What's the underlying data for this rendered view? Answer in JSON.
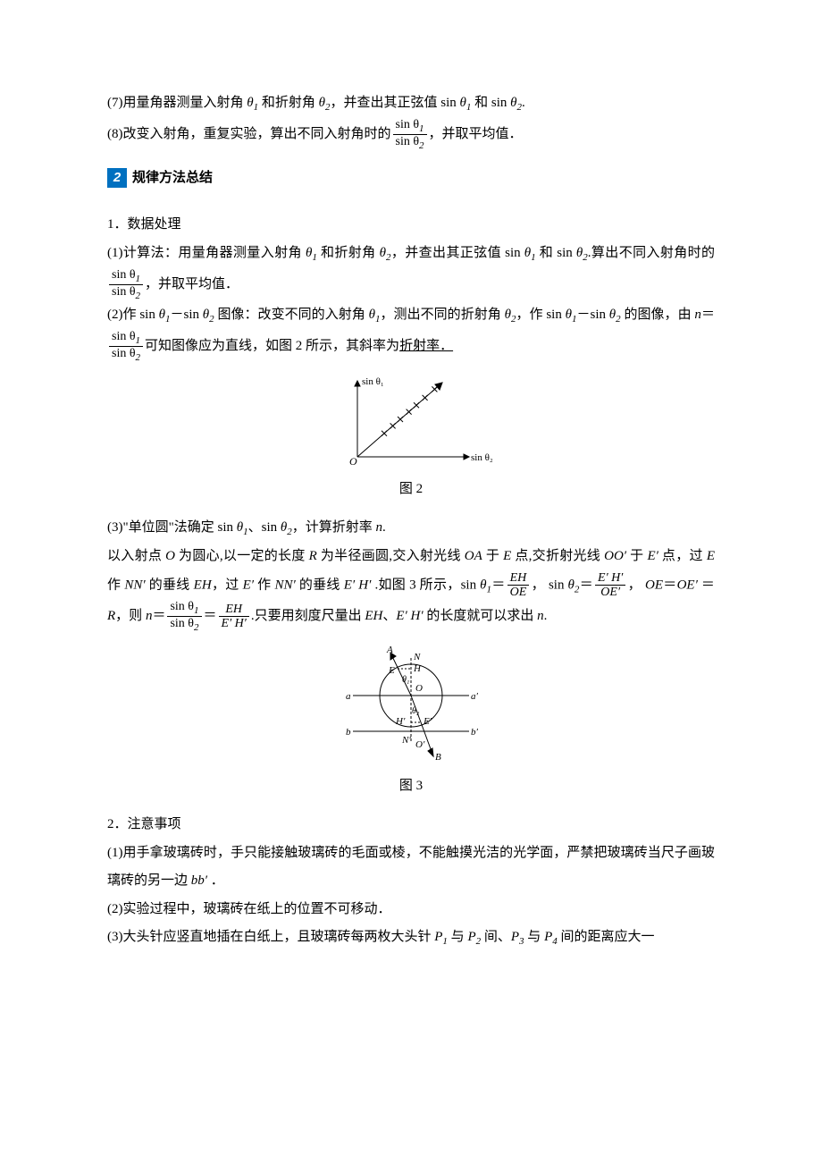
{
  "p7": {
    "prefix": "(7)用量角器测量入射角 ",
    "t1a": "θ",
    "t1s": "1",
    "mid1": " 和折射角 ",
    "t2a": "θ",
    "t2s": "2",
    "mid2": "，并查出其正弦值 sin ",
    "t3a": "θ",
    "t3s": "1",
    "mid3": " 和 sin ",
    "t4a": "θ",
    "t4s": "2",
    "suffix": "."
  },
  "p8": {
    "prefix": "(8)改变入射角，重复实验，算出不同入射角时的",
    "num": "sin θ",
    "num_s": "1",
    "den": "sin θ",
    "den_s": "2",
    "suffix": "，并取平均值．"
  },
  "marker": {
    "num": "2",
    "title": "规律方法总结"
  },
  "h1": "1．数据处理",
  "d1": {
    "prefix": "(1)计算法：用量角器测量入射角 ",
    "t1": "θ",
    "s1": "1",
    "m1": " 和折射角 ",
    "t2": "θ",
    "s2": "2",
    "m2": "，并查出其正弦值 sin ",
    "t3": "θ",
    "s3": "1",
    "m3": " 和 sin ",
    "t4": "θ",
    "s4": "2",
    "m4": ".算出不同入射角时的",
    "num": "sin θ",
    "num_s": "1",
    "den": "sin θ",
    "den_s": "2",
    "suffix": "，并取平均值．"
  },
  "d2": {
    "prefix": "(2)作 sin ",
    "t1": "θ",
    "s1": "1",
    "dash": "－sin ",
    "t2": "θ",
    "s2": "2",
    "m1": " 图像：改变不同的入射角 ",
    "t3": "θ",
    "s3": "1",
    "m2": "，测出不同的折射角 ",
    "t4": "θ",
    "s4": "2",
    "m3": "，作 sin ",
    "t5": "θ",
    "s5": "1",
    "dash2": "－sin ",
    "t6": "θ",
    "s6": "2",
    "m4": " 的图像，由 ",
    "n": "n",
    "eq": "＝",
    "num": "sin θ",
    "num_s": "1",
    "den": "sin θ",
    "den_s": "2",
    "m5": "可知图像应为直线，如图 2 所示，其斜率为",
    "ul": "折射率．"
  },
  "fig2": {
    "caption": "图 2",
    "ylabel": "sin θ₁",
    "xlabel": "sin θ₂",
    "origin": "O",
    "axis_color": "#000",
    "point_color": "#000",
    "points": [
      [
        25,
        25
      ],
      [
        33,
        33
      ],
      [
        40,
        40
      ],
      [
        48,
        48
      ],
      [
        55,
        55
      ],
      [
        63,
        63
      ],
      [
        72,
        72
      ]
    ]
  },
  "d3": {
    "prefix": "(3)\"单位圆\"法确定 sin ",
    "t1": "θ",
    "s1": "1",
    "sep": "、sin ",
    "t2": "θ",
    "s2": "2",
    "m1": "，计算折射率 ",
    "n": "n",
    "suffix": "."
  },
  "d3b": {
    "l1_a": "以入射点 ",
    "O": "O",
    "l1_b": " 为圆心,以一定的长度 ",
    "R": "R",
    "l1_c": " 为半径画圆,交入射光线 ",
    "OA": "OA",
    "l1_d": " 于 ",
    "E": "E",
    "l1_e": " 点,交折射光线 ",
    "OO": "OO′",
    "l2_a": "于 ",
    "Ep": "E′ ",
    "l2_b": " 点，过 ",
    "E2": "E",
    "l2_c": " 作 ",
    "NN": "NN′ ",
    "l2_d": " 的垂线 ",
    "EH": "EH",
    "l2_e": "，过 ",
    "Ep2": "E′ ",
    "l2_f": " 作 ",
    "NN2": "NN′ ",
    "l2_g": " 的垂线 ",
    "EpHp": "E′ H′ ",
    "l2_h": ".如图 3 所示，sin ",
    "t1": "θ",
    "s1": "1",
    "eq": "＝",
    "f1n": "EH",
    "f1d": "OE",
    "comma": "，",
    "l3_a": "sin ",
    "t2": "θ",
    "s2": "2",
    "eq2": "＝",
    "f2n": "E′ H′",
    "f2d": "OE′",
    "comma2": "，",
    "OEeq": "OE",
    "eq3": "＝",
    "OEp": "OE′ ",
    "eq4": "＝",
    "R2": "R",
    "l3_b": "，则 ",
    "n": "n",
    "eq5": "＝",
    "f3n": "sin θ",
    "f3ns": "1",
    "f3d": "sin θ",
    "f3ds": "2",
    "eq6": "＝",
    "f4n": "EH",
    "f4d": "E′ H′",
    "l3_c": ".只要用刻度尺量出 ",
    "EH2": "EH",
    "sep": "、",
    "EpHp2": "E′ H′ ",
    "l3_d": " 的长度就可以求出 ",
    "n2": "n",
    "period": "."
  },
  "fig3": {
    "caption": "图 3",
    "labels": {
      "A": "A",
      "N": "N",
      "E": "E",
      "H": "H",
      "O": "O",
      "a": "a",
      "ap": "a′",
      "Hp": "H′",
      "t2": "θ₂",
      "Ep": "E′",
      "b": "b",
      "bp": "b′",
      "Np": "N′",
      "Op": "O′",
      "B": "B",
      "t1": "θ₁"
    },
    "stroke": "#000"
  },
  "h2": "2．注意事项",
  "n1": {
    "a": "(1)用手拿玻璃砖时，手只能接触玻璃砖的毛面或棱，不能触摸光洁的光学面，严禁把玻璃砖当尺子画玻璃砖的另一边 ",
    "bb": "bb′ ",
    "b": "．"
  },
  "n2": "(2)实验过程中，玻璃砖在纸上的位置不可移动．",
  "n3": {
    "a": "(3)大头针应竖直地插在白纸上，且玻璃砖每两枚大头针 ",
    "P1": "P",
    "s1": "1",
    "m1": " 与 ",
    "P2": "P",
    "s2": "2",
    "m2": " 间、",
    "P3": "P",
    "s3": "3",
    "m3": " 与 ",
    "P4": "P",
    "s4": "4",
    "b": " 间的距离应大一"
  }
}
